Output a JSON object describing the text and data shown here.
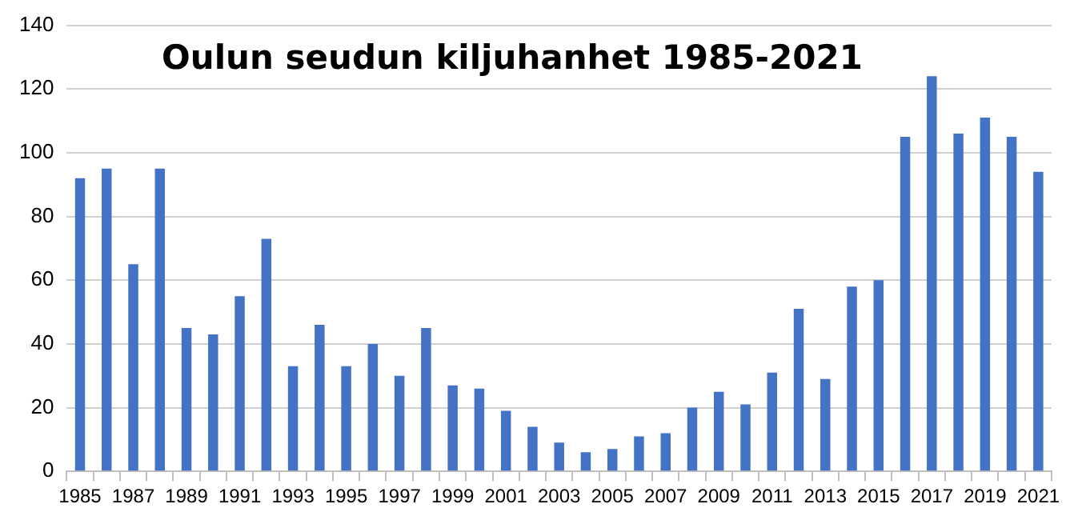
{
  "chart_data": {
    "type": "bar",
    "title": "Oulun seudun kiljuhanhet 1985-2021",
    "categories": [
      "1985",
      null,
      "1987",
      null,
      "1989",
      null,
      "1991",
      null,
      "1993",
      null,
      "1995",
      null,
      "1997",
      null,
      "1999",
      null,
      "2001",
      null,
      "2003",
      null,
      "2005",
      null,
      "2007",
      null,
      "2009",
      null,
      "2011",
      null,
      "2013",
      null,
      "2015",
      null,
      "2017",
      null,
      "2019",
      null,
      "2021"
    ],
    "values": [
      92,
      95,
      65,
      95,
      45,
      43,
      55,
      73,
      33,
      46,
      33,
      40,
      30,
      45,
      27,
      26,
      19,
      14,
      9,
      6,
      7,
      11,
      12,
      20,
      25,
      21,
      31,
      51,
      29,
      58,
      60,
      105,
      124,
      106,
      111,
      105,
      94
    ],
    "color": "#4472c4",
    "ylim": [
      0,
      140
    ],
    "yticks": [
      0,
      20,
      40,
      60,
      80,
      100,
      120,
      140
    ],
    "grid": "y",
    "legend": false
  }
}
